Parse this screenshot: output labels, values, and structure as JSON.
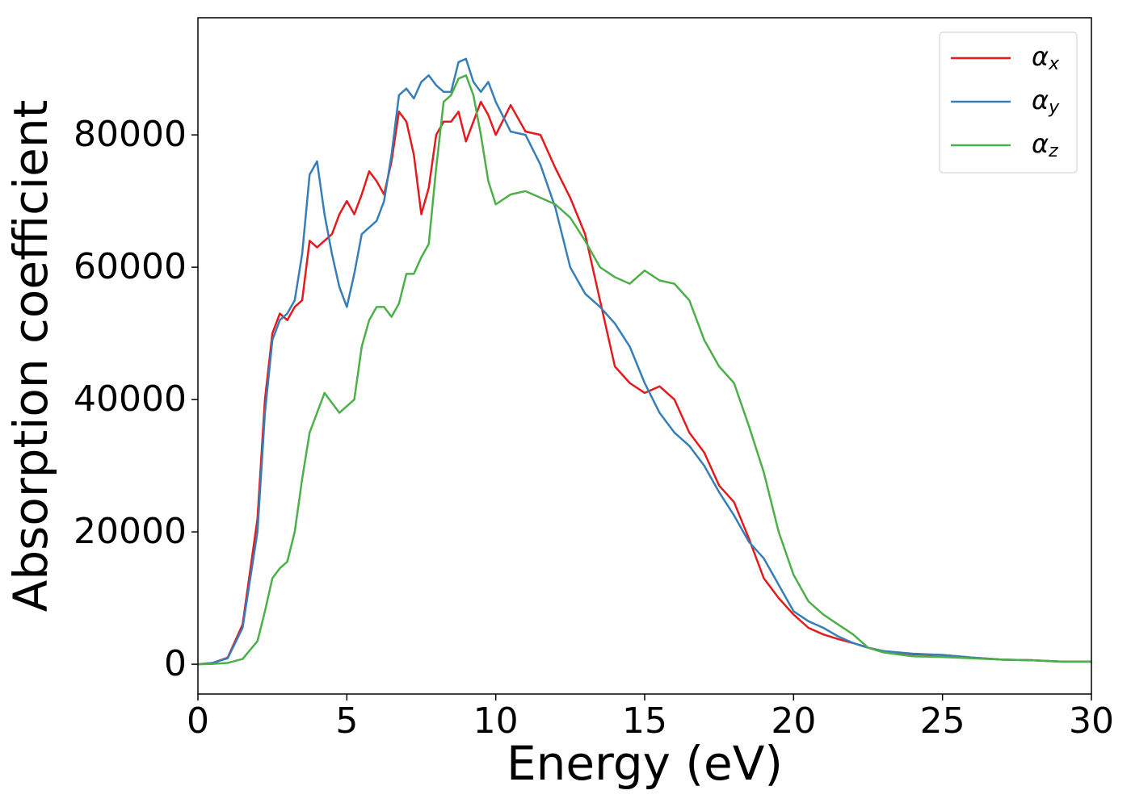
{
  "chart_data": {
    "type": "line",
    "xlabel": "Energy (eV)",
    "ylabel": "Absorption coefficient",
    "x": [
      0,
      0.5,
      1,
      1.5,
      2,
      2.25,
      2.5,
      2.75,
      3,
      3.25,
      3.5,
      3.75,
      4,
      4.25,
      4.5,
      4.75,
      5,
      5.25,
      5.5,
      5.75,
      6,
      6.25,
      6.5,
      6.75,
      7,
      7.25,
      7.5,
      7.75,
      8,
      8.25,
      8.5,
      8.75,
      9,
      9.25,
      9.5,
      9.75,
      10,
      10.5,
      11,
      11.5,
      12,
      12.5,
      13,
      13.5,
      14,
      14.5,
      15,
      15.5,
      16,
      16.5,
      17,
      17.5,
      18,
      18.5,
      19,
      19.5,
      20,
      20.5,
      21,
      21.5,
      22,
      22.5,
      23,
      24,
      25,
      26,
      27,
      28,
      29,
      30
    ],
    "series": [
      {
        "name": "αx",
        "color": "#e41a1c",
        "values": [
          0,
          200,
          1000,
          6000,
          22000,
          40000,
          50000,
          53000,
          52000,
          54000,
          55000,
          64000,
          63000,
          64000,
          65000,
          68000,
          70000,
          68000,
          71000,
          74500,
          73000,
          71000,
          76000,
          83500,
          82000,
          77000,
          68000,
          72000,
          80000,
          82000,
          82000,
          83500,
          79000,
          82000,
          85000,
          83000,
          80000,
          84500,
          80500,
          80000,
          75000,
          70500,
          65000,
          55000,
          45000,
          42500,
          41000,
          42000,
          40000,
          35000,
          32000,
          27000,
          24500,
          19000,
          13000,
          10000,
          7500,
          5500,
          4500,
          3800,
          3200,
          2500,
          2000,
          1500,
          1400,
          1000,
          700,
          600,
          400,
          400
        ]
      },
      {
        "name": "αy",
        "color": "#377eb8",
        "values": [
          0,
          200,
          900,
          5500,
          20000,
          38000,
          49000,
          52000,
          53000,
          55000,
          62000,
          74000,
          76000,
          68000,
          62000,
          57000,
          54000,
          59000,
          65000,
          66000,
          67000,
          70000,
          77000,
          86000,
          87000,
          85500,
          88000,
          89000,
          87500,
          86500,
          86500,
          91000,
          91500,
          88000,
          86500,
          88000,
          85000,
          80500,
          80000,
          75500,
          69000,
          60000,
          56000,
          54000,
          51500,
          48000,
          42500,
          38000,
          35000,
          33000,
          30000,
          26000,
          22500,
          18500,
          16000,
          12000,
          8000,
          6500,
          5500,
          4200,
          3200,
          2500,
          2000,
          1600,
          1400,
          1000,
          700,
          600,
          400,
          400
        ]
      },
      {
        "name": "αz",
        "color": "#4daf4a",
        "values": [
          0,
          50,
          200,
          800,
          3500,
          8000,
          13000,
          14500,
          15500,
          20000,
          28000,
          35000,
          38000,
          41000,
          39500,
          38000,
          39000,
          40000,
          48000,
          52000,
          54000,
          54000,
          52500,
          54500,
          59000,
          59000,
          61500,
          63500,
          75000,
          85000,
          86000,
          88500,
          89000,
          86000,
          80000,
          73000,
          69500,
          71000,
          71500,
          70500,
          69500,
          67500,
          64000,
          60000,
          58500,
          57500,
          59500,
          58000,
          57500,
          55000,
          49000,
          45000,
          42500,
          36000,
          29000,
          20000,
          13500,
          9500,
          7500,
          6000,
          4500,
          2500,
          1800,
          1200,
          1100,
          900,
          700,
          600,
          400,
          400
        ]
      }
    ],
    "xlim": [
      0,
      30
    ],
    "xticks": [
      0,
      5,
      10,
      15,
      20,
      25,
      30
    ],
    "ylim": [
      -4500,
      97700
    ],
    "yticks": [
      0,
      20000,
      40000,
      60000,
      80000
    ],
    "legend": "upper right"
  }
}
